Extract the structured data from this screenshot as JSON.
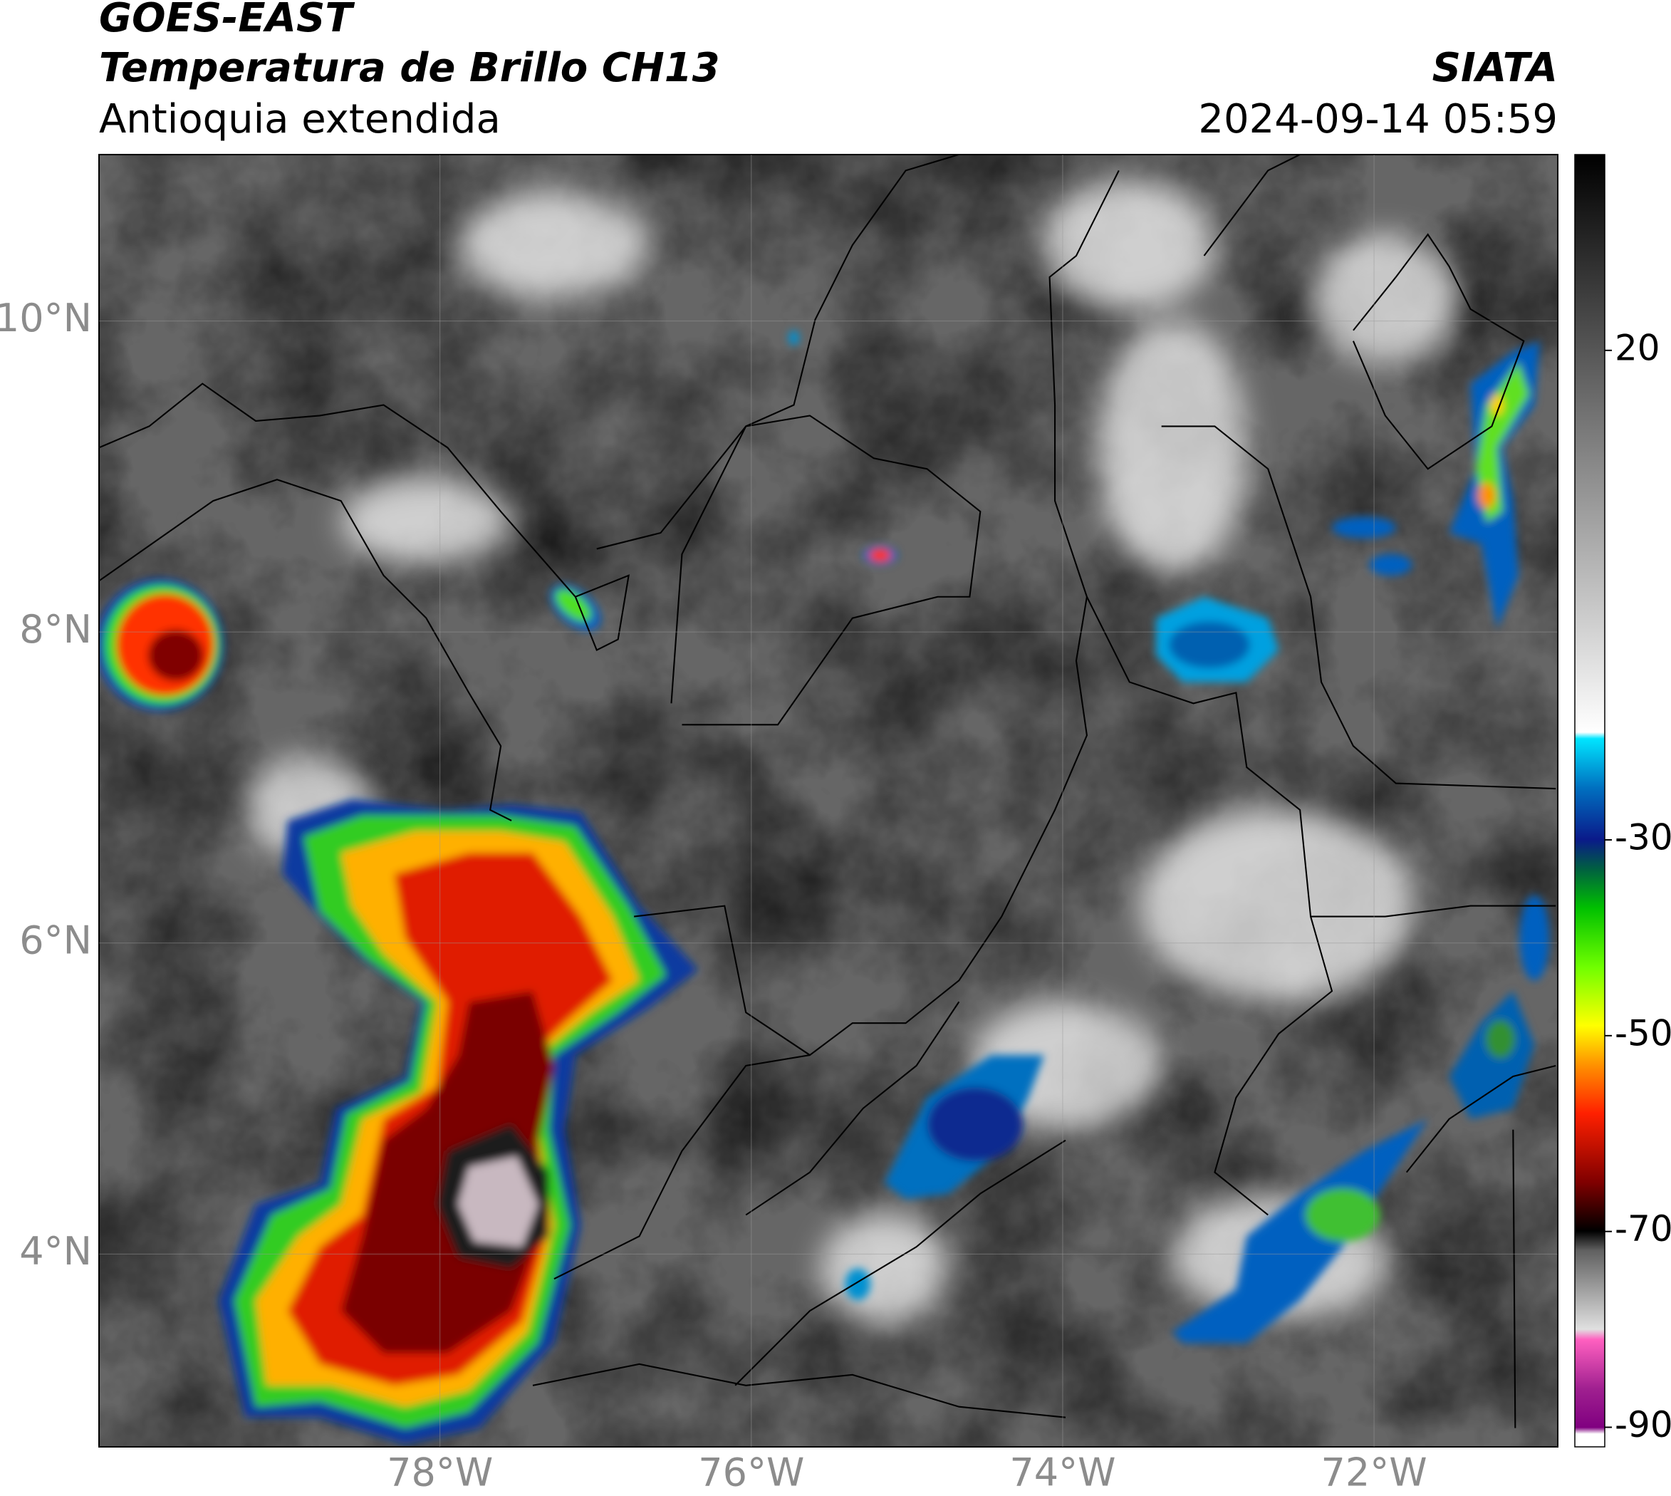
{
  "header": {
    "title": "GOES-EAST",
    "subtitle": "Temperatura de Brillo CH13",
    "region": "Antioquia extendida",
    "source": "SIATA",
    "datetime": "2024-09-14 05:59"
  },
  "chart_data": {
    "type": "map",
    "xlim": [
      -80.19,
      -70.82
    ],
    "ylim": [
      2.76,
      11.07
    ],
    "xticks": [
      {
        "value": -78,
        "label": "78°W"
      },
      {
        "value": -76,
        "label": "76°W"
      },
      {
        "value": -74,
        "label": "74°W"
      },
      {
        "value": -72,
        "label": "72°W"
      }
    ],
    "yticks": [
      {
        "value": 10,
        "label": "10°N"
      },
      {
        "value": 8,
        "label": "8°N"
      },
      {
        "value": 6,
        "label": "6°N"
      },
      {
        "value": 4,
        "label": "4°N"
      }
    ],
    "grid": true,
    "colorbar": {
      "lim": [
        -92,
        40
      ],
      "ticks": [
        20,
        -30,
        -50,
        -70,
        -90
      ]
    }
  }
}
